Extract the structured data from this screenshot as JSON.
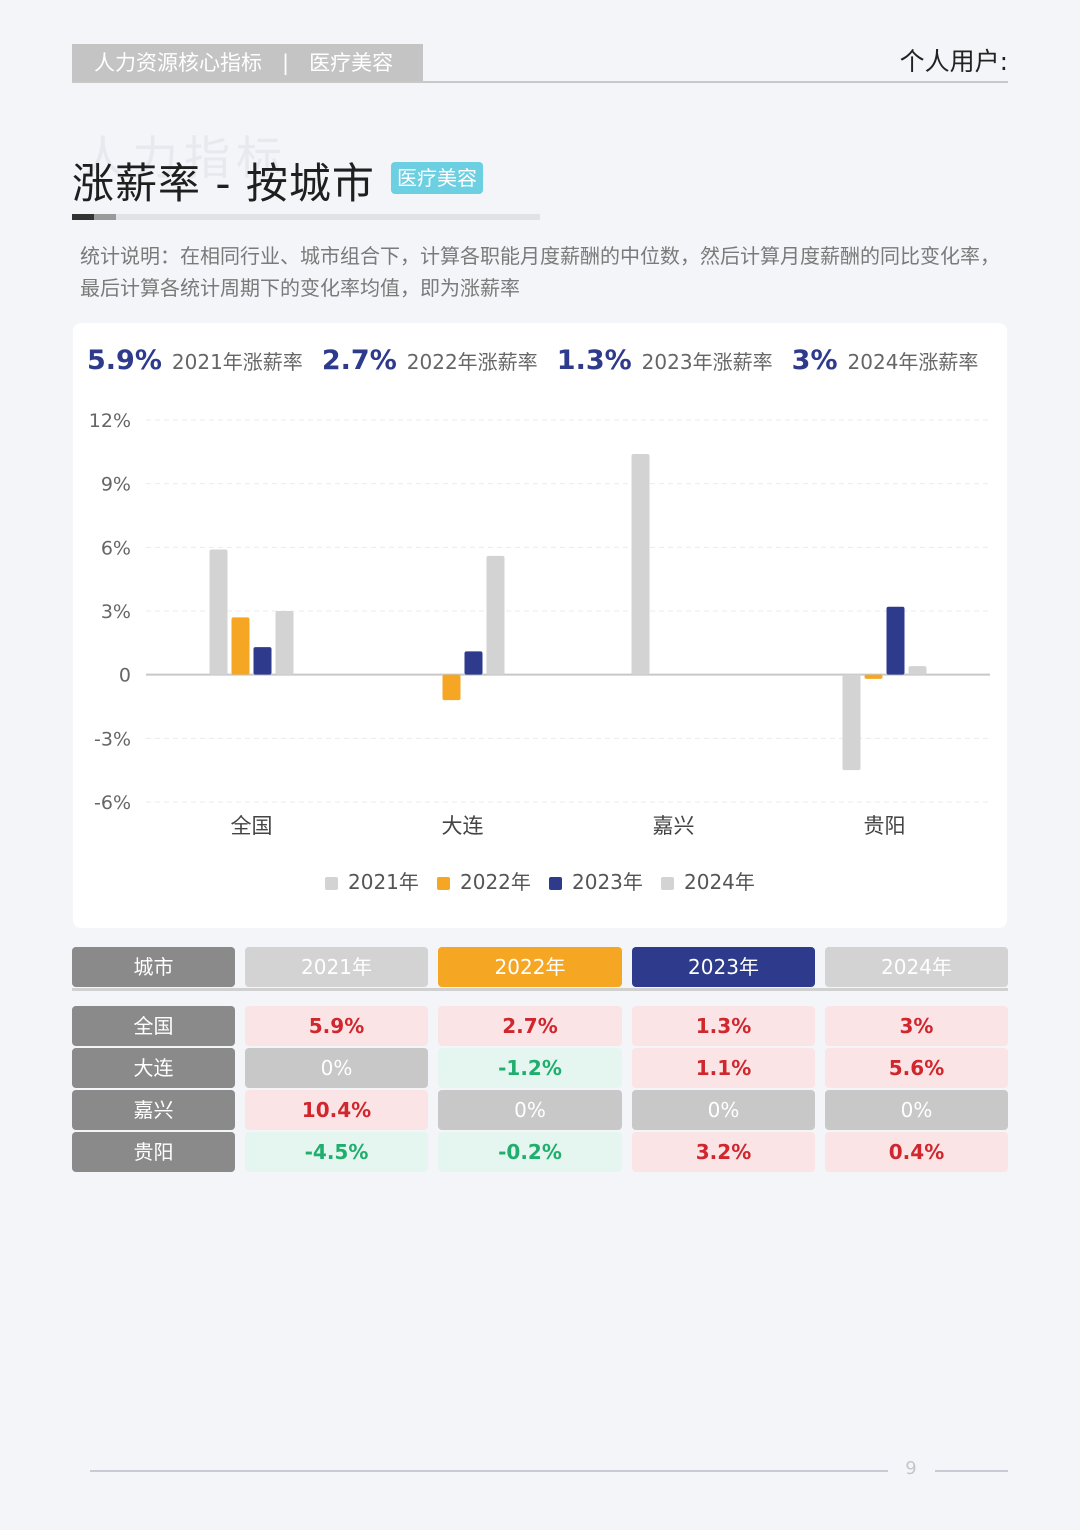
{
  "header": {
    "category": "人力资源核心指标",
    "separator": "|",
    "industry": "医疗美容",
    "user_label": "个人用户:"
  },
  "watermark": "人力指标",
  "title": {
    "text": "涨薪率 - 按城市",
    "tag": "医疗美容"
  },
  "description": "统计说明：在相同行业、城市组合下，计算各职能月度薪酬的中位数，然后计算月度薪酬的同比变化率，最后计算各统计周期下的变化率均值，即为涨薪率",
  "summary": [
    {
      "value": "5.9%",
      "label": "2021年涨薪率"
    },
    {
      "value": "2.7%",
      "label": "2022年涨薪率"
    },
    {
      "value": "1.3%",
      "label": "2023年涨薪率"
    },
    {
      "value": "3%",
      "label": "2024年涨薪率"
    }
  ],
  "chart_data": {
    "type": "bar",
    "categories": [
      "全国",
      "大连",
      "嘉兴",
      "贵阳"
    ],
    "series": [
      {
        "name": "2021年",
        "color": "#d3d3d3",
        "values": [
          5.9,
          0,
          10.4,
          -4.5
        ]
      },
      {
        "name": "2022年",
        "color": "#f5a623",
        "values": [
          2.7,
          -1.2,
          0,
          -0.2
        ]
      },
      {
        "name": "2023年",
        "color": "#2e3a8c",
        "values": [
          1.3,
          1.1,
          0,
          3.2
        ]
      },
      {
        "name": "2024年",
        "color": "#d3d3d3",
        "values": [
          3,
          5.6,
          0,
          0.4
        ]
      }
    ],
    "y_ticks": [
      "12%",
      "9%",
      "6%",
      "3%",
      "0",
      "-3%",
      "-6%"
    ],
    "ylim": [
      -6,
      12
    ],
    "legend_position": "bottom",
    "grid": true
  },
  "table": {
    "header_city": "城市",
    "headers": [
      "2021年",
      "2022年",
      "2023年",
      "2024年"
    ],
    "rows": [
      {
        "city": "全国",
        "values": [
          "5.9%",
          "2.7%",
          "1.3%",
          "3%"
        ],
        "status": [
          "pos",
          "pos",
          "pos",
          "pos"
        ]
      },
      {
        "city": "大连",
        "values": [
          "0%",
          "-1.2%",
          "1.1%",
          "5.6%"
        ],
        "status": [
          "zero",
          "neg",
          "pos",
          "pos"
        ]
      },
      {
        "city": "嘉兴",
        "values": [
          "10.4%",
          "0%",
          "0%",
          "0%"
        ],
        "status": [
          "pos",
          "zero",
          "zero",
          "zero"
        ]
      },
      {
        "city": "贵阳",
        "values": [
          "-4.5%",
          "-0.2%",
          "3.2%",
          "0.4%"
        ],
        "status": [
          "neg",
          "neg",
          "pos",
          "pos"
        ]
      }
    ]
  },
  "colors": {
    "accent": "#2e3a8c",
    "orange": "#f5a623",
    "grey": "#d3d3d3",
    "positive_text": "#d0262d",
    "positive_bg": "#fbe4e6",
    "negative_text": "#1fae6e",
    "negative_bg": "#e4f6ef",
    "zero_bg": "#c8c8c8",
    "city_bg": "#8a8a8a"
  },
  "page_number": "9"
}
